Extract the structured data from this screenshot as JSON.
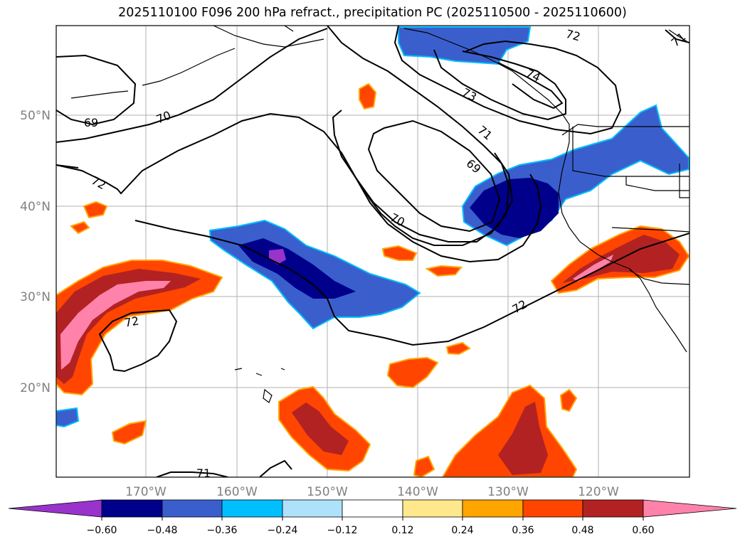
{
  "title": "2025110100 F096 200 hPa refract., precipitation PC (2025110500 - 2025110600)",
  "map": {
    "lat_labels": [
      "50°N",
      "40°N",
      "30°N",
      "20°N"
    ],
    "lon_labels": [
      "170°W",
      "160°W",
      "150°W",
      "140°W",
      "130°W",
      "120°W"
    ],
    "contour_labels": [
      "69",
      "70",
      "72",
      "73",
      "74",
      "72",
      "71",
      "69",
      "70",
      "72",
      "72",
      "71",
      "71"
    ],
    "colors": {
      "neg_060": "#9933cc",
      "neg_048": "#00008b",
      "neg_036": "#3a5fcd",
      "neg_024": "#00bfff",
      "neg_012": "#aee2fa",
      "zero": "#ffffff",
      "pos_012": "#ffe88c",
      "pos_024": "#ffa500",
      "pos_036": "#ff4500",
      "pos_048": "#b22222",
      "pos_060": "#ff82ab"
    }
  },
  "colorbar": {
    "ticks": [
      "−0.60",
      "−0.48",
      "−0.36",
      "−0.24",
      "−0.12",
      "0.12",
      "0.24",
      "0.36",
      "0.48",
      "0.60"
    ],
    "colors": [
      "#9933cc",
      "#00008b",
      "#3a5fcd",
      "#00bfff",
      "#aee2fa",
      "#ffffff",
      "#ffe88c",
      "#ffa500",
      "#ff4500",
      "#b22222",
      "#ff82ab",
      "#ff82ab"
    ]
  }
}
